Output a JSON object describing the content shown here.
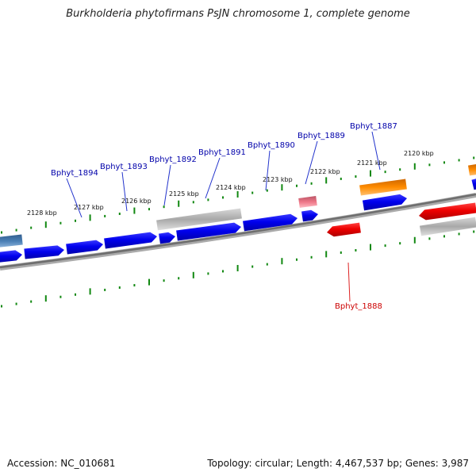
{
  "title": "Burkholderia phytofirmans PsJN chromosome 1, complete genome",
  "footer": {
    "accession": "Accession: NC_010681",
    "topology": "Topology: circular; Length: 4,467,537 bp; Genes: 3,987"
  },
  "colors": {
    "forward": "#0000ee",
    "reverse": "#ee0000",
    "pseudo": "#aaaaaa",
    "rna": "#ff8800",
    "selected_pink": "#ee7788",
    "steel": "#4477aa",
    "axis": "#888888",
    "ticks": "#118811",
    "label_blue": "#0000aa",
    "label_red": "#cc0000"
  },
  "ticks": [
    {
      "label": "2128 kbp"
    },
    {
      "label": "2127 kbp"
    },
    {
      "label": "2126 kbp"
    },
    {
      "label": "2125 kbp"
    },
    {
      "label": "2124 kbp"
    },
    {
      "label": "2123 kbp"
    },
    {
      "label": "2122 kbp"
    },
    {
      "label": "2121 kbp"
    },
    {
      "label": "2120 kbp"
    }
  ],
  "genes": [
    {
      "name": "Bphyt_1894",
      "color": "blue"
    },
    {
      "name": "Bphyt_1893",
      "color": "blue"
    },
    {
      "name": "Bphyt_1892",
      "color": "blue"
    },
    {
      "name": "Bphyt_1891",
      "color": "blue"
    },
    {
      "name": "Bphyt_1890",
      "color": "blue"
    },
    {
      "name": "Bphyt_1889",
      "color": "blue"
    },
    {
      "name": "Bphyt_1887",
      "color": "blue"
    },
    {
      "name": "Bphyt_1888",
      "color": "red"
    }
  ]
}
